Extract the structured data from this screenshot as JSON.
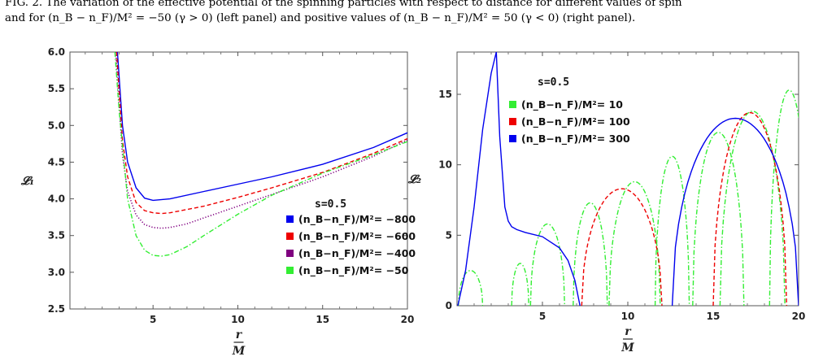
{
  "caption": {
    "line1": "FIG. 2. The variation of the effective potential of the spinning particles with respect to distance for different values of spin",
    "line2": "and for (n_B − n_F)/M² = −50 (γ > 0) (left panel) and positive values of (n_B − n_F)/M² = 50 (γ < 0) (right panel)."
  },
  "chart_data": [
    {
      "type": "line",
      "panel": "left",
      "ylabel": "𝓛₁",
      "xlabel_num": "r",
      "xlabel_den": "M",
      "xlim": [
        0.1,
        20
      ],
      "ylim": [
        2.5,
        6.0
      ],
      "xticks": [
        "5",
        "10",
        "15",
        "20"
      ],
      "yticks": [
        "2.5",
        "3.0",
        "3.5",
        "4.0",
        "4.5",
        "5.0",
        "5.5",
        "6.0"
      ],
      "annotation": "s=0.5",
      "legend_position": "bottom-right",
      "series": [
        {
          "name": "(n_B−n_F)/M²= −800",
          "color": "#0000ee",
          "style": "solid",
          "x": [
            2.9,
            3.2,
            3.5,
            4.0,
            4.5,
            5.0,
            6.0,
            8.0,
            10.0,
            12.0,
            15.0,
            18.0,
            20.0
          ],
          "y": [
            6.0,
            5.0,
            4.5,
            4.15,
            4.01,
            3.98,
            4.0,
            4.1,
            4.2,
            4.3,
            4.47,
            4.7,
            4.9
          ]
        },
        {
          "name": "(n_B−n_F)/M²= −600",
          "color": "#ee0000",
          "style": "dashed",
          "x": [
            2.85,
            3.2,
            3.5,
            4.0,
            4.5,
            5.0,
            5.5,
            6.0,
            8.0,
            10.0,
            12.0,
            15.0,
            18.0,
            20.0
          ],
          "y": [
            6.0,
            4.8,
            4.3,
            3.95,
            3.84,
            3.81,
            3.8,
            3.81,
            3.9,
            4.02,
            4.15,
            4.36,
            4.62,
            4.82
          ]
        },
        {
          "name": "(n_B−n_F)/M²= −400",
          "color": "#800080",
          "style": "dotted",
          "x": [
            2.8,
            3.2,
            3.5,
            4.0,
            4.5,
            5.0,
            5.5,
            6.0,
            7.0,
            8.0,
            10.0,
            12.0,
            15.0,
            18.0,
            20.0
          ],
          "y": [
            6.0,
            4.6,
            4.1,
            3.78,
            3.65,
            3.61,
            3.6,
            3.61,
            3.66,
            3.74,
            3.9,
            4.06,
            4.3,
            4.58,
            4.8
          ]
        },
        {
          "name": "(n_B−n_F)/M²= −50",
          "color": "#33ee33",
          "style": "dashdot",
          "x": [
            2.75,
            3.0,
            3.5,
            4.0,
            4.5,
            5.0,
            5.5,
            6.0,
            7.0,
            8.0,
            10.0,
            12.0,
            15.0,
            18.0,
            20.0
          ],
          "y": [
            6.0,
            5.2,
            4.0,
            3.5,
            3.3,
            3.23,
            3.22,
            3.24,
            3.35,
            3.5,
            3.79,
            4.05,
            4.35,
            4.6,
            4.78
          ]
        }
      ]
    },
    {
      "type": "line",
      "panel": "right",
      "ylabel": "𝓛₂",
      "xlabel_num": "r",
      "xlabel_den": "M",
      "xlim": [
        0,
        20
      ],
      "ylim": [
        0,
        18
      ],
      "xticks": [
        "5",
        "10",
        "15",
        "20"
      ],
      "yticks": [
        "0",
        "5",
        "10",
        "15"
      ],
      "annotation": "s=0.5",
      "legend_position": "top-left",
      "series": [
        {
          "name": "(n_B−n_F)/M²= 10",
          "color": "#33ee33",
          "style": "dashdot",
          "arches": [
            [
              0.08,
              1.5,
              2.5
            ],
            [
              3.2,
              4.2,
              3.0
            ],
            [
              4.3,
              6.3,
              5.8
            ],
            [
              6.8,
              8.8,
              7.3
            ],
            [
              8.9,
              11.9,
              8.8
            ],
            [
              11.6,
              13.6,
              10.6
            ],
            [
              13.8,
              16.8,
              12.3
            ],
            [
              15.4,
              19.2,
              13.8
            ],
            [
              18.3,
              20.6,
              15.3
            ]
          ]
        },
        {
          "name": "(n_B−n_F)/M²= 100",
          "color": "#ee0000",
          "style": "dashed",
          "arches": [
            [
              7.3,
              12.0,
              8.3
            ],
            [
              15.0,
              19.3,
              13.7
            ]
          ]
        },
        {
          "name": "(n_B−n_F)/M²= 300",
          "color": "#0000ee",
          "style": "solid",
          "arches": [
            [
              12.6,
              20.0,
              13.3
            ]
          ],
          "x": [
            0.05,
            0.5,
            1.0,
            1.5,
            2.0,
            2.3,
            2.5,
            2.8,
            3.0,
            3.2,
            3.5,
            4.0,
            5.0,
            6.0,
            6.5,
            6.9,
            7.1,
            7.2
          ],
          "y": [
            0.0,
            2.5,
            7.0,
            12.5,
            16.5,
            18.0,
            12.0,
            7.0,
            6.0,
            5.6,
            5.4,
            5.2,
            4.9,
            4.1,
            3.2,
            1.8,
            0.6,
            0.0
          ]
        }
      ]
    }
  ]
}
